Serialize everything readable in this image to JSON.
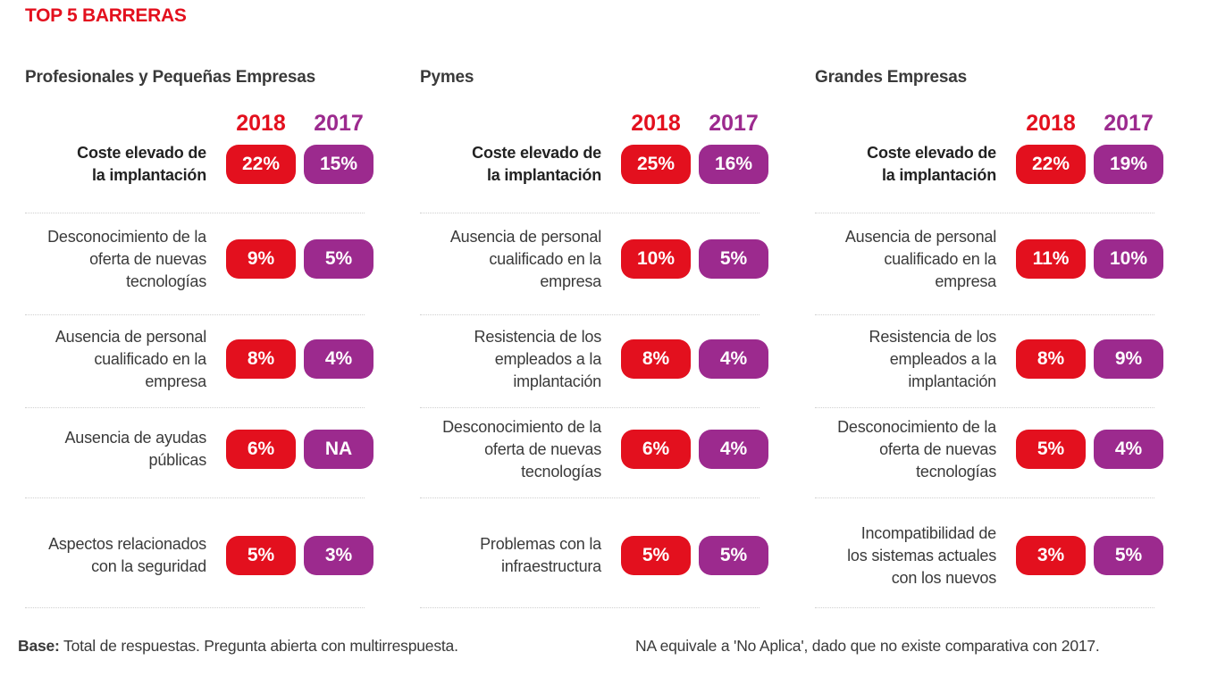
{
  "title": "TOP 5 BARRERAS",
  "colors": {
    "red": "#e3101e",
    "purple": "#9c2a8e",
    "title": "#e3101e"
  },
  "years": {
    "current": "2018",
    "previous": "2017"
  },
  "panels": [
    {
      "title": "Profesionales y Pequeñas Empresas",
      "rows": [
        {
          "label": [
            "Coste elevado de",
            "la implantación"
          ],
          "bold": true,
          "v2018": "22%",
          "v2017": "15%"
        },
        {
          "label": [
            "Desconocimiento de la",
            "oferta de nuevas",
            "tecnologías"
          ],
          "bold": false,
          "v2018": "9%",
          "v2017": "5%"
        },
        {
          "label": [
            "Ausencia de personal",
            "cualificado en la",
            "empresa"
          ],
          "bold": false,
          "v2018": "8%",
          "v2017": "4%"
        },
        {
          "label": [
            "Ausencia de ayudas",
            "públicas"
          ],
          "bold": false,
          "v2018": "6%",
          "v2017": "NA"
        },
        {
          "label": [
            "Aspectos relacionados",
            "con la seguridad"
          ],
          "bold": false,
          "v2018": "5%",
          "v2017": "3%"
        }
      ]
    },
    {
      "title": "Pymes",
      "rows": [
        {
          "label": [
            "Coste elevado de",
            "la implantación"
          ],
          "bold": true,
          "v2018": "25%",
          "v2017": "16%"
        },
        {
          "label": [
            "Ausencia de personal",
            "cualificado en la",
            "empresa"
          ],
          "bold": false,
          "v2018": "10%",
          "v2017": "5%"
        },
        {
          "label": [
            "Resistencia de los",
            "empleados a la",
            "implantación"
          ],
          "bold": false,
          "v2018": "8%",
          "v2017": "4%"
        },
        {
          "label": [
            "Desconocimiento de la",
            "oferta de nuevas",
            "tecnologías"
          ],
          "bold": false,
          "v2018": "6%",
          "v2017": "4%"
        },
        {
          "label": [
            "Problemas con la",
            "infraestructura"
          ],
          "bold": false,
          "v2018": "5%",
          "v2017": "5%"
        }
      ]
    },
    {
      "title": "Grandes Empresas",
      "rows": [
        {
          "label": [
            "Coste elevado de",
            "la implantación"
          ],
          "bold": true,
          "v2018": "22%",
          "v2017": "19%"
        },
        {
          "label": [
            "Ausencia de personal",
            "cualificado en la",
            "empresa"
          ],
          "bold": false,
          "v2018": "11%",
          "v2017": "10%"
        },
        {
          "label": [
            "Resistencia de los",
            "empleados a la",
            "implantación"
          ],
          "bold": false,
          "v2018": "8%",
          "v2017": "9%"
        },
        {
          "label": [
            "Desconocimiento de la",
            "oferta de nuevas",
            "tecnologías"
          ],
          "bold": false,
          "v2018": "5%",
          "v2017": "4%"
        },
        {
          "label": [
            "Incompatibilidad de",
            "los sistemas actuales",
            "con los nuevos"
          ],
          "bold": false,
          "v2018": "3%",
          "v2017": "5%"
        }
      ]
    }
  ],
  "footer": {
    "base_label": "Base:",
    "base_text": " Total de respuestas. Pregunta abierta con multirrespuesta.",
    "note": "NA equivale a 'No Aplica', dado que no existe comparativa con 2017."
  }
}
